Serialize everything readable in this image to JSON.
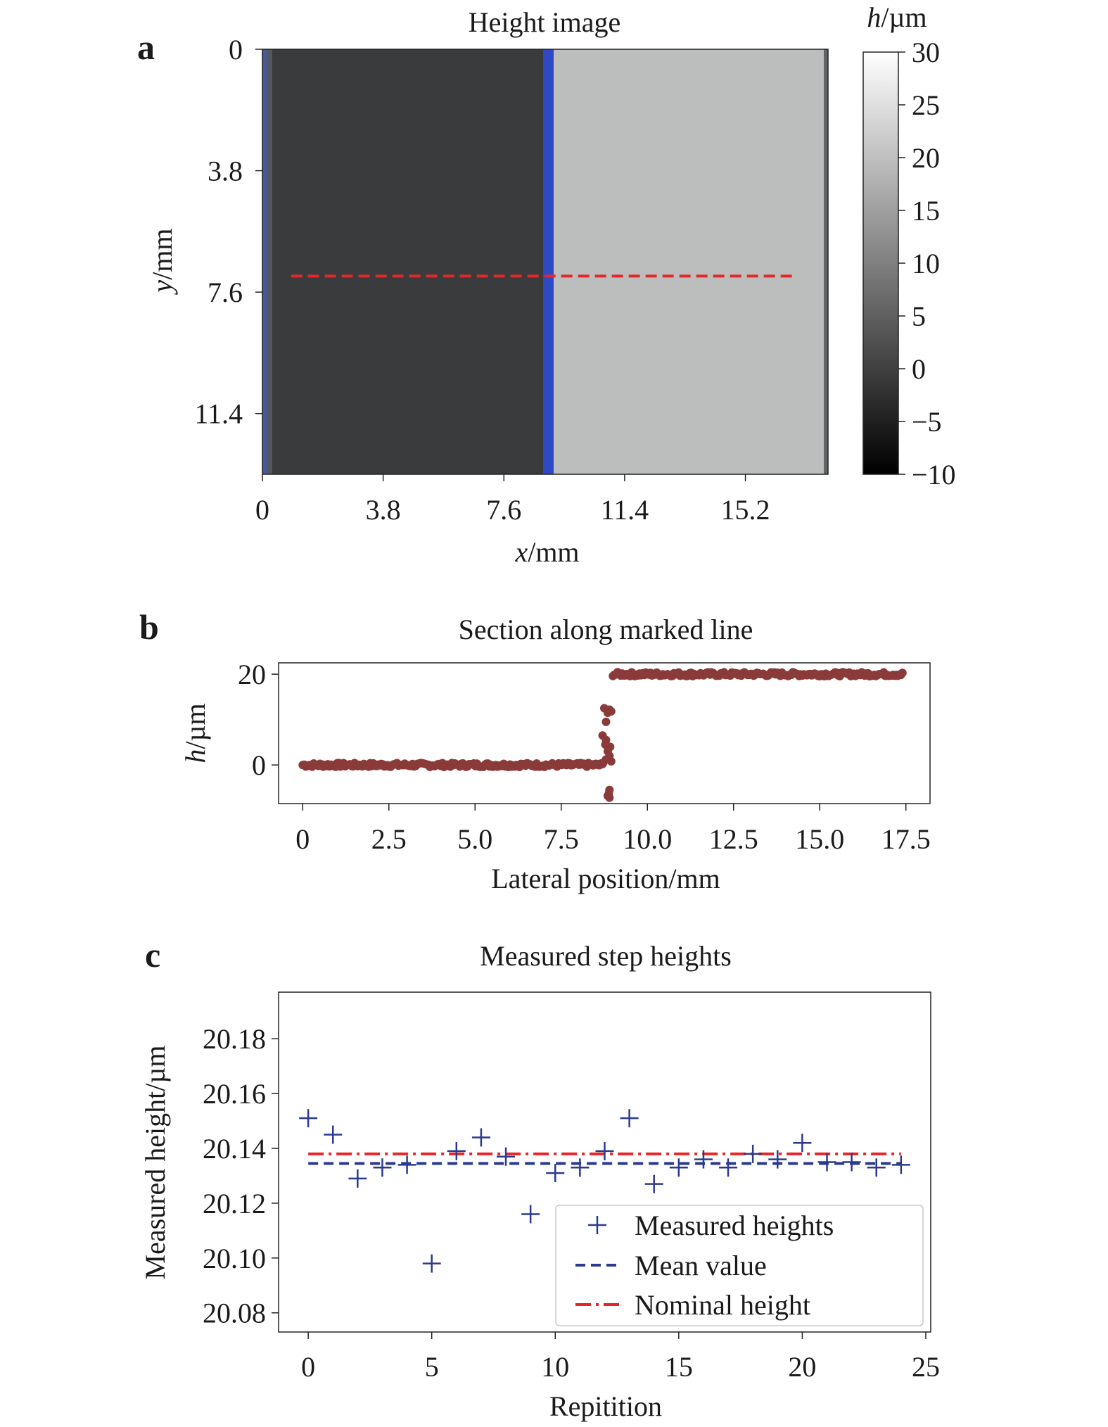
{
  "panels": {
    "a": {
      "letter": "a",
      "chart_data": {
        "type": "heatmap",
        "title": "Height image",
        "xlabel_var": "x",
        "xlabel_unit": "/mm",
        "ylabel_var": "y",
        "ylabel_unit": "/mm",
        "x_ticks": [
          "0",
          "3.8",
          "7.6",
          "11.4",
          "15.2"
        ],
        "x_tick_values": [
          0,
          3.8,
          7.6,
          11.4,
          15.2
        ],
        "y_ticks": [
          "0",
          "3.8",
          "7.6",
          "11.4"
        ],
        "y_tick_values": [
          0,
          3.8,
          7.6,
          11.4
        ],
        "xlim": [
          0,
          17.8
        ],
        "ylim": [
          13.3,
          0
        ],
        "step_edge_x": 9.0,
        "low_region_height": 0,
        "high_region_height": 20,
        "marked_line": {
          "y": 7.1,
          "x_start": 0.9,
          "x_end": 16.8,
          "color": "#e8262a"
        },
        "edge_color": "#2f49c4",
        "colorbar": {
          "label_var": "h",
          "label_unit": "/µm",
          "ticks": [
            "30",
            "25",
            "20",
            "15",
            "10",
            "5",
            "0",
            "−5",
            "−10"
          ],
          "tick_values": [
            30,
            25,
            20,
            15,
            10,
            5,
            0,
            -5,
            -10
          ],
          "range": [
            -10,
            30
          ]
        }
      }
    },
    "b": {
      "letter": "b",
      "chart_data": {
        "type": "scatter",
        "title": "Section along marked line",
        "xlabel": "Lateral position/mm",
        "ylabel_var": "h",
        "ylabel_unit": "/µm",
        "x_ticks": [
          "0",
          "2.5",
          "5.0",
          "7.5",
          "10.0",
          "12.5",
          "15.0",
          "17.5"
        ],
        "x_tick_values": [
          0,
          2.5,
          5.0,
          7.5,
          10.0,
          12.5,
          15.0,
          17.5
        ],
        "y_ticks": [
          "0",
          "20"
        ],
        "y_tick_values": [
          0,
          20
        ],
        "xlim": [
          -0.7,
          18.2
        ],
        "ylim": [
          -8.5,
          22.5
        ],
        "point_color": "#8b3a3a",
        "series": [
          {
            "x_range": [
              0,
              8.7
            ],
            "y": 0
          },
          {
            "x_range": [
              9.0,
              17.4
            ],
            "y": 20
          }
        ],
        "edge_points": [
          [
            8.75,
            12.5
          ],
          [
            8.85,
            11.5
          ],
          [
            8.9,
            12.2
          ],
          [
            8.8,
            9.5
          ],
          [
            8.95,
            11.8
          ],
          [
            8.7,
            6.5
          ],
          [
            8.78,
            4.5
          ],
          [
            8.85,
            3.0
          ],
          [
            8.9,
            2.0
          ],
          [
            8.8,
            1.2
          ],
          [
            8.72,
            0.5
          ],
          [
            8.95,
            0.8
          ],
          [
            8.9,
            -5.5
          ],
          [
            8.85,
            -6.8
          ],
          [
            8.9,
            -7.2
          ],
          [
            8.88,
            -6.3
          ],
          [
            8.8,
            5.5
          ],
          [
            8.92,
            4.0
          ]
        ]
      }
    },
    "c": {
      "letter": "c",
      "chart_data": {
        "type": "scatter",
        "title": "Measured step heights",
        "xlabel": "Repitition",
        "ylabel": "Measured height/µm",
        "x_ticks": [
          "0",
          "5",
          "10",
          "15",
          "20",
          "25"
        ],
        "x_tick_values": [
          0,
          5,
          10,
          15,
          20,
          25
        ],
        "y_ticks": [
          "20.18",
          "20.16",
          "20.14",
          "20.12",
          "20.10",
          "20.08"
        ],
        "y_tick_values": [
          20.18,
          20.16,
          20.14,
          20.12,
          20.1,
          20.08
        ],
        "xlim": [
          -1.2,
          25.2
        ],
        "ylim": [
          20.073,
          20.197
        ],
        "x": [
          0,
          1,
          2,
          3,
          4,
          5,
          6,
          7,
          8,
          9,
          10,
          11,
          12,
          13,
          14,
          15,
          16,
          17,
          18,
          19,
          20,
          21,
          22,
          23,
          24
        ],
        "measured": [
          20.151,
          20.145,
          20.129,
          20.133,
          20.134,
          20.098,
          20.139,
          20.144,
          20.137,
          20.116,
          20.131,
          20.133,
          20.139,
          20.151,
          20.127,
          20.133,
          20.136,
          20.133,
          20.138,
          20.136,
          20.142,
          20.135,
          20.135,
          20.133,
          20.134
        ],
        "mean_value": 20.1345,
        "nominal_height": 20.138,
        "legend": {
          "placement": "lower-right",
          "items": [
            {
              "label": "Measured heights",
              "style": "plus",
              "color": "#2b3a8f"
            },
            {
              "label": "Mean value",
              "style": "dashed",
              "color": "#2b3a8f"
            },
            {
              "label": "Nominal height",
              "style": "dashdot",
              "color": "#e8262a"
            }
          ]
        }
      }
    }
  }
}
